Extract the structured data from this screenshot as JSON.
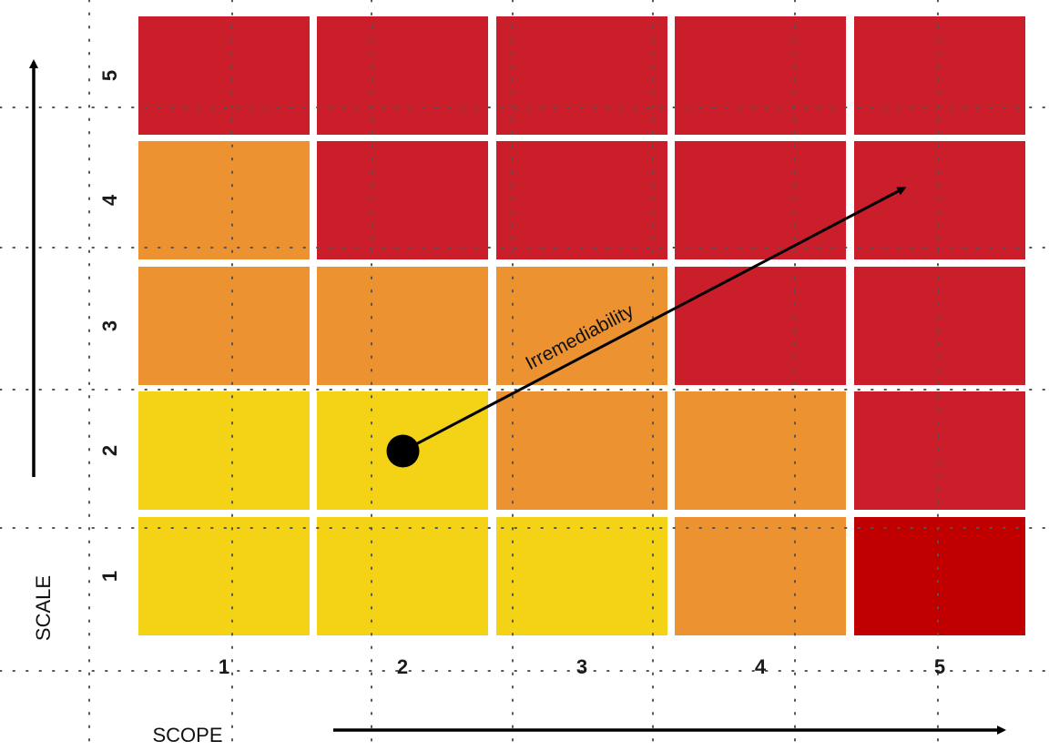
{
  "chart_data": {
    "type": "heatmap",
    "xlabel": "SCOPE",
    "ylabel": "SCALE",
    "x_categories": [
      "1",
      "2",
      "3",
      "4",
      "5"
    ],
    "y_categories": [
      "1",
      "2",
      "3",
      "4",
      "5"
    ],
    "grid": "dotted",
    "levels": {
      "yellow": "#F4D316",
      "orange": "#EC9230",
      "red": "#CA1E2A",
      "darkred": "#C00000"
    },
    "cells": [
      [
        "yellow",
        "yellow",
        "yellow",
        "orange",
        "darkred"
      ],
      [
        "yellow",
        "yellow",
        "orange",
        "orange",
        "red"
      ],
      [
        "orange",
        "orange",
        "orange",
        "red",
        "red"
      ],
      [
        "orange",
        "red",
        "red",
        "red",
        "red"
      ],
      [
        "red",
        "red",
        "red",
        "red",
        "red"
      ]
    ],
    "annotation": {
      "label": "Irremediability",
      "from": {
        "scope": 2,
        "scale": 2
      },
      "to": {
        "scope": 4.8,
        "scale": 4.1
      }
    }
  }
}
